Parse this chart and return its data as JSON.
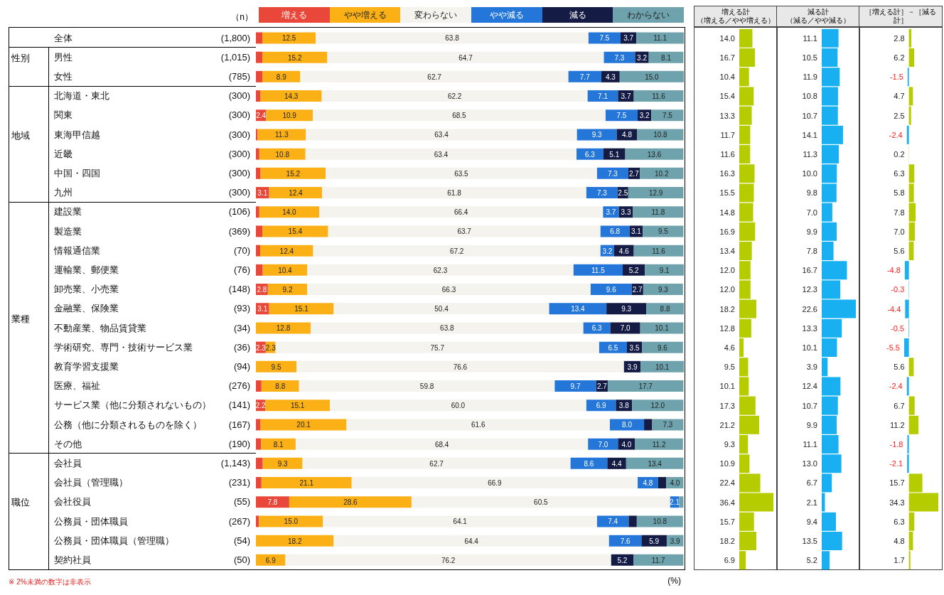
{
  "chart_data": [
    {
      "type": "bar",
      "orientation": "horizontal",
      "stacked": true,
      "legend": "top",
      "xlabel": "(%)",
      "categories": [
        "全体",
        "男性",
        "女性",
        "北海道・東北",
        "関東",
        "東海甲信越",
        "近畿",
        "中国・四国",
        "九州",
        "建設業",
        "製造業",
        "情報通信業",
        "運輸業、郵便業",
        "卸売業、小売業",
        "金融業、保険業",
        "不動産業、物品賃貸業",
        "学術研究、専門・技術サービス業",
        "教育学習支援業",
        "医療、福祉",
        "サービス業（他に分類されないもの）",
        "公務（他に分類されるものを除く）",
        "その他",
        "会社員",
        "会社員（管理職）",
        "会社役員",
        "公務員・団体職員",
        "公務員・団体職員（管理職）",
        "契約社員"
      ],
      "y2_categories": [
        "(1,800)",
        "(1,015)",
        "(785)",
        "(300)",
        "(300)",
        "(300)",
        "(300)",
        "(300)",
        "(300)",
        "(106)",
        "(369)",
        "(70)",
        "(76)",
        "(148)",
        "(93)",
        "(34)",
        "(36)",
        "(94)",
        "(276)",
        "(141)",
        "(167)",
        "(190)",
        "(1,143)",
        "(231)",
        "(55)",
        "(267)",
        "(54)",
        "(50)"
      ],
      "annotations": [
        "（n）",
        "※  2%未満の数字は非表示",
        "性別",
        "地域",
        "業種",
        "職位"
      ],
      "series": [
        {
          "name": "増える",
          "color": "#e8473a",
          "values": [
            1.5,
            1.5,
            1.5,
            1.1,
            2.4,
            0.4,
            0.8,
            1.1,
            3.1,
            0.8,
            1.5,
            1.0,
            1.6,
            2.8,
            3.1,
            0,
            2.3,
            0,
            1.3,
            2.2,
            1.1,
            1.2,
            1.6,
            1.3,
            7.8,
            0.7,
            0,
            0
          ],
          "value_labels": [
            null,
            null,
            null,
            null,
            "2.4",
            null,
            null,
            null,
            "3.1",
            null,
            null,
            null,
            null,
            "2.8",
            "3.1",
            null,
            "2.3",
            null,
            null,
            "2.2",
            null,
            null,
            null,
            null,
            "7.8",
            null,
            null,
            null
          ]
        },
        {
          "name": "やや増える",
          "color": "#fbb116",
          "values": [
            12.5,
            15.2,
            8.9,
            14.3,
            10.9,
            11.3,
            10.8,
            15.2,
            12.4,
            14.0,
            15.4,
            12.4,
            10.4,
            9.2,
            15.1,
            12.8,
            2.3,
            9.5,
            8.8,
            15.1,
            20.1,
            8.1,
            9.3,
            21.1,
            28.6,
            15.0,
            18.2,
            6.9
          ],
          "value_labels": [
            "12.5",
            "15.2",
            "8.9",
            "14.3",
            "10.9",
            "11.3",
            "10.8",
            "15.2",
            "12.4",
            "14.0",
            "15.4",
            "12.4",
            "10.4",
            "9.2",
            "15.1",
            "12.8",
            "2.3",
            "9.5",
            "8.8",
            "15.1",
            "20.1",
            "8.1",
            "9.3",
            "21.1",
            "28.6",
            "15.0",
            "18.2",
            "6.9"
          ]
        },
        {
          "name": "変わらない",
          "color": "#f4f3ee",
          "values": [
            63.8,
            64.7,
            62.7,
            62.2,
            68.5,
            63.4,
            63.4,
            63.5,
            61.8,
            66.4,
            63.7,
            67.2,
            62.3,
            66.3,
            50.4,
            63.8,
            75.7,
            76.6,
            59.8,
            60.0,
            61.6,
            68.4,
            62.7,
            66.9,
            60.5,
            64.1,
            64.4,
            76.2
          ],
          "value_labels": [
            "63.8",
            "64.7",
            "62.7",
            "62.2",
            "68.5",
            "63.4",
            "63.4",
            "63.5",
            "61.8",
            "66.4",
            "63.7",
            "67.2",
            "62.3",
            "66.3",
            "50.4",
            "63.8",
            "75.7",
            "76.6",
            "59.8",
            "60.0",
            "61.6",
            "68.4",
            "62.7",
            "66.9",
            "60.5",
            "64.1",
            "64.4",
            "76.2"
          ]
        },
        {
          "name": "やや減る",
          "color": "#2476d8",
          "values": [
            7.5,
            7.3,
            7.7,
            7.1,
            7.5,
            9.3,
            6.3,
            7.3,
            7.3,
            3.7,
            6.8,
            3.2,
            11.5,
            9.6,
            13.4,
            6.3,
            6.5,
            0,
            9.7,
            6.9,
            8.0,
            7.0,
            8.6,
            4.8,
            2.1,
            7.4,
            7.6,
            0
          ],
          "value_labels": [
            "7.5",
            "7.3",
            "7.7",
            "7.1",
            "7.5",
            "9.3",
            "6.3",
            "7.3",
            "7.3",
            "3.7",
            "6.8",
            "3.2",
            "11.5",
            "9.6",
            "13.4",
            "6.3",
            "6.5",
            null,
            "9.7",
            "6.9",
            "8.0",
            "7.0",
            "8.6",
            "4.8",
            "2.1",
            "7.4",
            "7.6",
            null
          ]
        },
        {
          "name": "減る",
          "color": "#141b45",
          "values": [
            3.7,
            3.2,
            4.3,
            3.7,
            3.2,
            4.8,
            5.1,
            2.7,
            2.5,
            3.3,
            3.1,
            4.6,
            5.2,
            2.7,
            9.3,
            7.0,
            3.5,
            3.9,
            2.7,
            3.8,
            1.9,
            4.0,
            4.4,
            1.9,
            0,
            1.9,
            5.9,
            5.2
          ],
          "value_labels": [
            "3.7",
            "3.2",
            "4.3",
            "3.7",
            "3.2",
            "4.8",
            "5.1",
            "2.7",
            "2.5",
            "3.3",
            "3.1",
            "4.6",
            "5.2",
            "2.7",
            "9.3",
            "7.0",
            "3.5",
            "3.9",
            "2.7",
            "3.8",
            null,
            "4.0",
            "4.4",
            null,
            null,
            null,
            "5.9",
            "5.2"
          ]
        },
        {
          "name": "わからない",
          "color": "#6ea2ad",
          "values": [
            11.1,
            8.1,
            15.0,
            11.6,
            7.5,
            10.8,
            13.6,
            10.2,
            12.9,
            11.8,
            9.5,
            11.6,
            9.1,
            9.3,
            8.8,
            10.1,
            9.6,
            10.1,
            17.7,
            12.0,
            7.3,
            11.2,
            13.4,
            4.0,
            1.0,
            10.8,
            3.9,
            11.7
          ],
          "value_labels": [
            "11.1",
            "8.1",
            "15.0",
            "11.6",
            "7.5",
            "10.8",
            "13.6",
            "10.2",
            "12.9",
            "11.8",
            "9.5",
            "11.6",
            "9.1",
            "9.3",
            "8.8",
            "10.1",
            "9.6",
            "10.1",
            "17.7",
            "12.0",
            "7.3",
            "11.2",
            "13.4",
            "4.0",
            null,
            "10.8",
            "3.9",
            "11.7"
          ]
        }
      ]
    },
    {
      "type": "bar",
      "orientation": "horizontal",
      "title": "増える計",
      "subtitle": "（増える／やや増える）",
      "color": "#b5cc00",
      "values": [
        14.0,
        16.7,
        10.4,
        15.4,
        13.3,
        11.7,
        11.6,
        16.3,
        15.5,
        14.8,
        16.9,
        13.4,
        12.0,
        12.0,
        18.2,
        12.8,
        4.6,
        9.5,
        10.1,
        17.3,
        21.2,
        9.3,
        10.9,
        22.4,
        36.4,
        15.7,
        18.2,
        6.9
      ],
      "value_labels": [
        "14.0",
        "16.7",
        "10.4",
        "15.4",
        "13.3",
        "11.7",
        "11.6",
        "16.3",
        "15.5",
        "14.8",
        "16.9",
        "13.4",
        "12.0",
        "12.0",
        "18.2",
        "12.8",
        "4.6",
        "9.5",
        "10.1",
        "17.3",
        "21.2",
        "9.3",
        "10.9",
        "22.4",
        "36.4",
        "15.7",
        "18.2",
        "6.9"
      ]
    },
    {
      "type": "bar",
      "orientation": "horizontal",
      "title": "減る計",
      "subtitle": "（減る／やや減る）",
      "color": "#18b0f0",
      "values": [
        11.1,
        10.5,
        11.9,
        10.8,
        10.7,
        14.1,
        11.3,
        10.0,
        9.8,
        7.0,
        9.9,
        7.8,
        16.7,
        12.3,
        22.6,
        13.3,
        10.1,
        3.9,
        12.4,
        10.7,
        9.9,
        11.1,
        13.0,
        6.7,
        2.1,
        9.4,
        13.5,
        5.2
      ],
      "value_labels": [
        "11.1",
        "10.5",
        "11.9",
        "10.8",
        "10.7",
        "14.1",
        "11.3",
        "10.0",
        "9.8",
        "7.0",
        "9.9",
        "7.8",
        "16.7",
        "12.3",
        "22.6",
        "13.3",
        "10.1",
        "3.9",
        "12.4",
        "10.7",
        "9.9",
        "11.1",
        "13.0",
        "6.7",
        "2.1",
        "9.4",
        "13.5",
        "5.2"
      ]
    },
    {
      "type": "bar",
      "orientation": "horizontal",
      "title": "［増える計］－［減る計］",
      "values": [
        2.8,
        6.2,
        -1.5,
        4.7,
        2.5,
        -2.4,
        0.2,
        6.3,
        5.8,
        7.8,
        7.0,
        5.6,
        -4.8,
        -0.3,
        -4.4,
        -0.5,
        -5.5,
        5.6,
        -2.4,
        6.7,
        11.2,
        -1.8,
        -2.1,
        15.7,
        34.3,
        6.3,
        4.8,
        1.7
      ],
      "colors": [
        "#b5cc00",
        "#b5cc00",
        "#18b0f0",
        "#b5cc00",
        "#b5cc00",
        "#18b0f0",
        "#b5cc00",
        "#b5cc00",
        "#b5cc00",
        "#b5cc00",
        "#b5cc00",
        "#b5cc00",
        "#18b0f0",
        "#18b0f0",
        "#18b0f0",
        "#18b0f0",
        "#18b0f0",
        "#b5cc00",
        "#18b0f0",
        "#b5cc00",
        "#b5cc00",
        "#18b0f0",
        "#18b0f0",
        "#b5cc00",
        "#b5cc00",
        "#b5cc00",
        "#b5cc00",
        "#b5cc00"
      ],
      "value_labels": [
        "2.8",
        "6.2",
        "-1.5",
        "4.7",
        "2.5",
        "-2.4",
        "0.2",
        "6.3",
        "5.8",
        "7.8",
        "7.0",
        "5.6",
        "-4.8",
        "-0.3",
        "-4.4",
        "-0.5",
        "-5.5",
        "5.6",
        "-2.4",
        "6.7",
        "11.2",
        "-1.8",
        "-2.1",
        "15.7",
        "34.3",
        "6.3",
        "4.8",
        "1.7"
      ]
    }
  ]
}
